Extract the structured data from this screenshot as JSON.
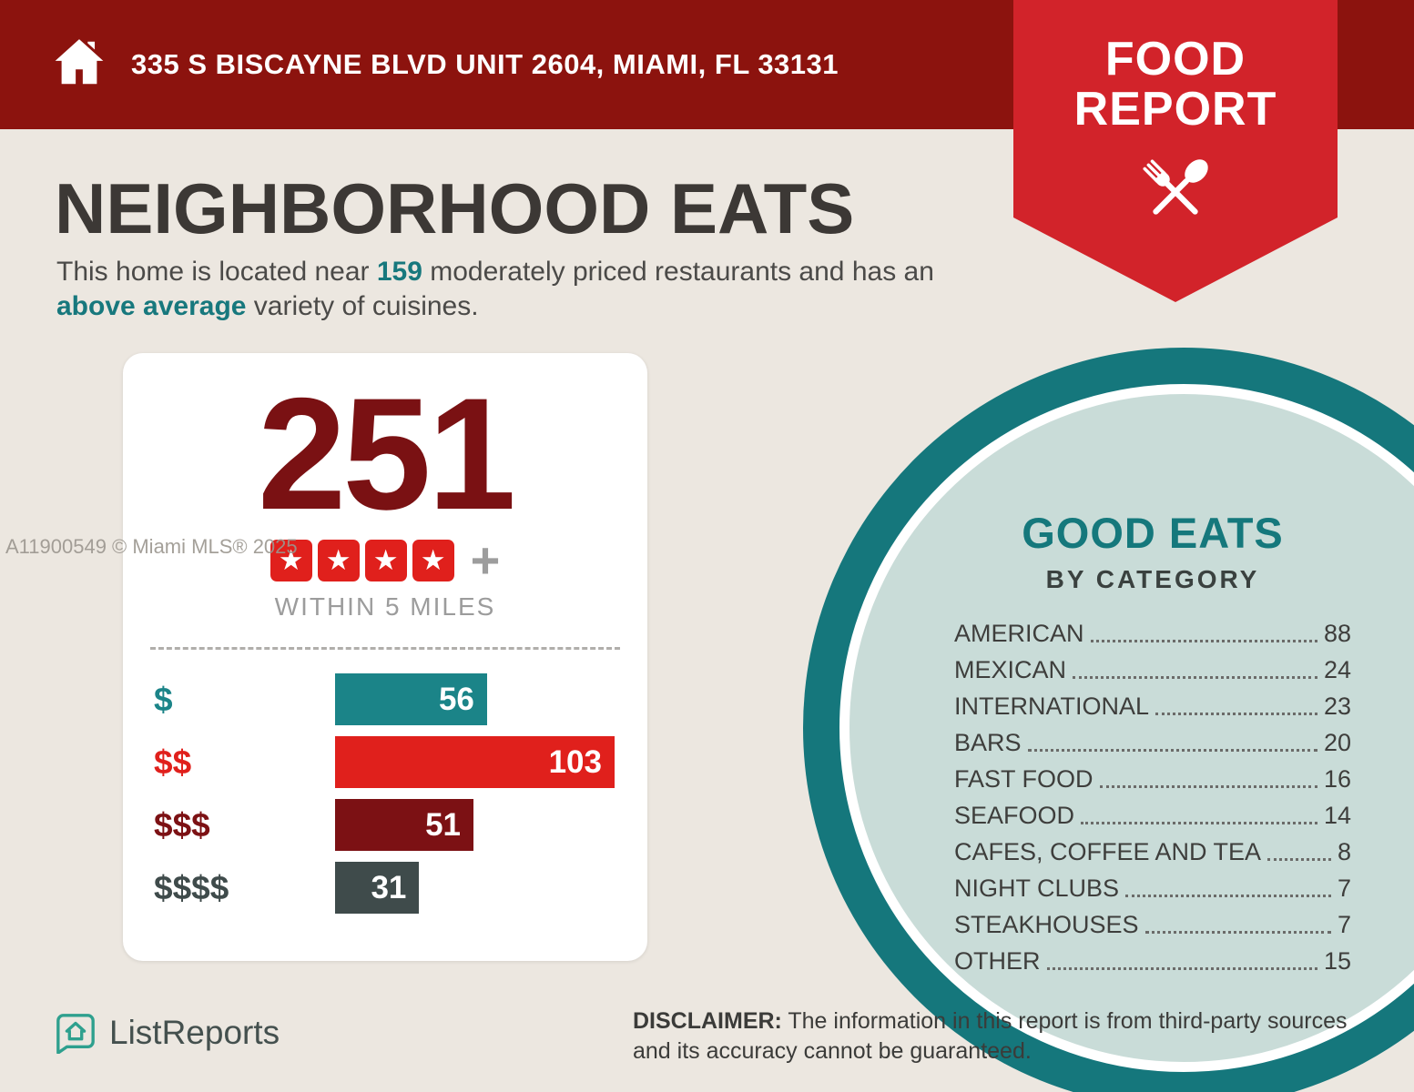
{
  "colors": {
    "header_bg": "#8c130e",
    "ribbon_red": "#d2232a",
    "teal": "#15787d",
    "big_number_red": "#7a1113",
    "star_red": "#e0201c",
    "slate": "#3f4b4b",
    "page_background": "#ece7e0",
    "circle_inner": "#c9dcd8"
  },
  "header": {
    "address": "335 S BISCAYNE BLVD UNIT 2604, MIAMI, FL 33131"
  },
  "ribbon": {
    "line1": "FOOD",
    "line2": "REPORT"
  },
  "main": {
    "title": "NEIGHBORHOOD EATS",
    "intro": {
      "seg1": "This home is located near ",
      "count": "159",
      "seg2": " moderately priced restaurants and has an ",
      "highlight": "above average",
      "seg3": " variety of cuisines."
    }
  },
  "stats_card": {
    "total": "251",
    "star_count": 4,
    "plus": "+",
    "within_label": "WITHIN 5 MILES"
  },
  "chart_data": [
    {
      "type": "bar",
      "title": "251 WITHIN 5 MILES",
      "categories": [
        "$",
        "$$",
        "$$$",
        "$$$$"
      ],
      "values": [
        56,
        103,
        51,
        31
      ],
      "bar_colors": [
        "#1b8488",
        "#e0201c",
        "#7c1114",
        "#3f4b4b"
      ],
      "label_colors": [
        "#1b8488",
        "#e0201c",
        "#7c1114",
        "#3f4b4b"
      ],
      "xlim": [
        0,
        103
      ],
      "orientation": "horizontal",
      "value_labels": "inside-right"
    },
    {
      "type": "table",
      "title": "GOOD EATS BY CATEGORY",
      "categories": [
        "AMERICAN",
        "MEXICAN",
        "INTERNATIONAL",
        "BARS",
        "FAST FOOD",
        "SEAFOOD",
        "CAFES, COFFEE AND TEA",
        "NIGHT CLUBS",
        "STEAKHOUSES",
        "OTHER"
      ],
      "values": [
        88,
        24,
        23,
        20,
        16,
        14,
        8,
        7,
        7,
        15
      ]
    }
  ],
  "good_eats": {
    "title": "GOOD EATS",
    "subtitle": "BY CATEGORY",
    "items": [
      {
        "label": "AMERICAN",
        "value": "88"
      },
      {
        "label": "MEXICAN",
        "value": "24"
      },
      {
        "label": "INTERNATIONAL",
        "value": "23"
      },
      {
        "label": "BARS",
        "value": "20"
      },
      {
        "label": "FAST FOOD",
        "value": "16"
      },
      {
        "label": "SEAFOOD",
        "value": "14"
      },
      {
        "label": "CAFES, COFFEE AND TEA",
        "value": "8"
      },
      {
        "label": "NIGHT CLUBS",
        "value": "7"
      },
      {
        "label": "STEAKHOUSES",
        "value": "7"
      },
      {
        "label": "OTHER",
        "value": "15"
      }
    ]
  },
  "footer": {
    "brand": "ListReports",
    "disclaimer_label": "DISCLAIMER:",
    "disclaimer_text": " The information in this report is from third-party sources and its accuracy cannot be guaranteed."
  },
  "watermark": "A11900549 © Miami MLS® 2025"
}
